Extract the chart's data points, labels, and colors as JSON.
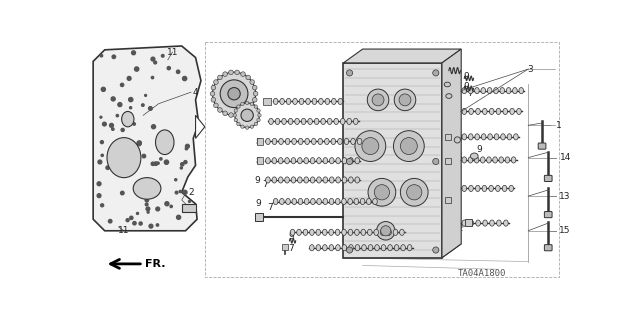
{
  "bg_color": "#ffffff",
  "diagram_code": "TA04A1800",
  "fr_label": "FR.",
  "line_color": "#333333",
  "label_color": "#222222",
  "label_fontsize": 6.5,
  "plate_color": "#f0f0f0",
  "plate_edge": "#333333",
  "component_color": "#e8e8e8",
  "component_edge": "#333333",
  "thin_lw": 0.5,
  "medium_lw": 0.8,
  "thick_lw": 1.2,
  "leader_lw": 0.5,
  "leader_color": "#444444"
}
